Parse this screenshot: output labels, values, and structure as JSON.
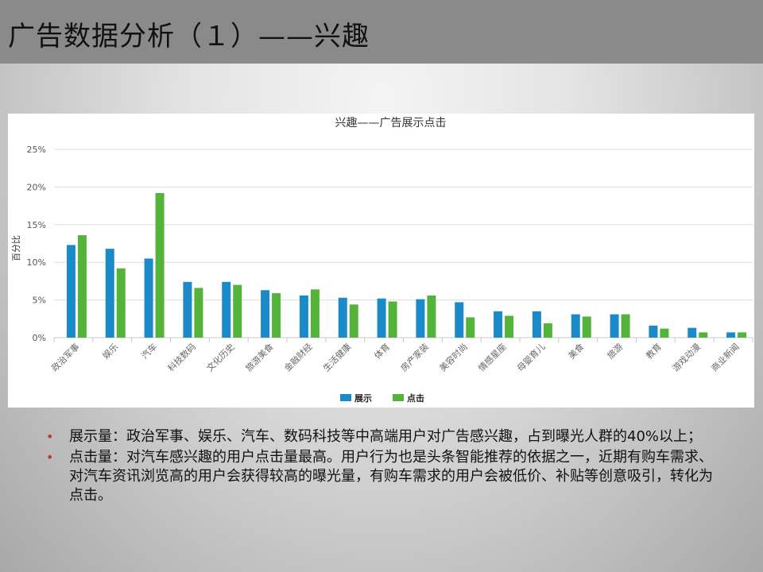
{
  "header": {
    "title": "广告数据分析（１）——兴趣"
  },
  "chart_data": {
    "type": "bar",
    "title": "兴趣——广告展示点击",
    "ylabel": "百分比",
    "xlabel": "",
    "ylim": [
      0,
      25
    ],
    "yticks": [
      "0%",
      "5%",
      "10%",
      "15%",
      "20%",
      "25%"
    ],
    "ytick_values": [
      0,
      5,
      10,
      15,
      20,
      25
    ],
    "grid": true,
    "legend": "bottom",
    "categories": [
      "政治军事",
      "娱乐",
      "汽车",
      "科技数码",
      "文化历史",
      "旅游美食",
      "金融财经",
      "生活健康",
      "体育",
      "房产家装",
      "美容时尚",
      "情感星座",
      "母婴育儿",
      "美食",
      "旅游",
      "教育",
      "游戏动漫",
      "商业新闻"
    ],
    "series": [
      {
        "name": "展示",
        "color": "#1b8ac8",
        "values": [
          12.3,
          11.8,
          10.5,
          7.4,
          7.4,
          6.3,
          5.6,
          5.3,
          5.2,
          5.1,
          4.7,
          3.5,
          3.5,
          3.1,
          3.1,
          1.6,
          1.3,
          0.7
        ]
      },
      {
        "name": "点击",
        "color": "#53b33a",
        "values": [
          13.6,
          9.2,
          19.2,
          6.6,
          7.0,
          5.9,
          6.4,
          4.4,
          4.8,
          5.6,
          2.7,
          2.9,
          1.9,
          2.8,
          3.1,
          1.2,
          0.7,
          0.7
        ]
      }
    ]
  },
  "bullets": [
    "展示量：政治军事、娱乐、汽车、数码科技等中高端用户对广告感兴趣，占到曝光人群的40%以上；",
    "点击量：对汽车感兴趣的用户点击量最高。用户行为也是头条智能推荐的依据之一，近期有购车需求、对汽车资讯浏览高的用户会获得较高的曝光量，有购车需求的用户会被低价、补贴等创意吸引，转化为点击。"
  ],
  "bullet_symbol": "•"
}
